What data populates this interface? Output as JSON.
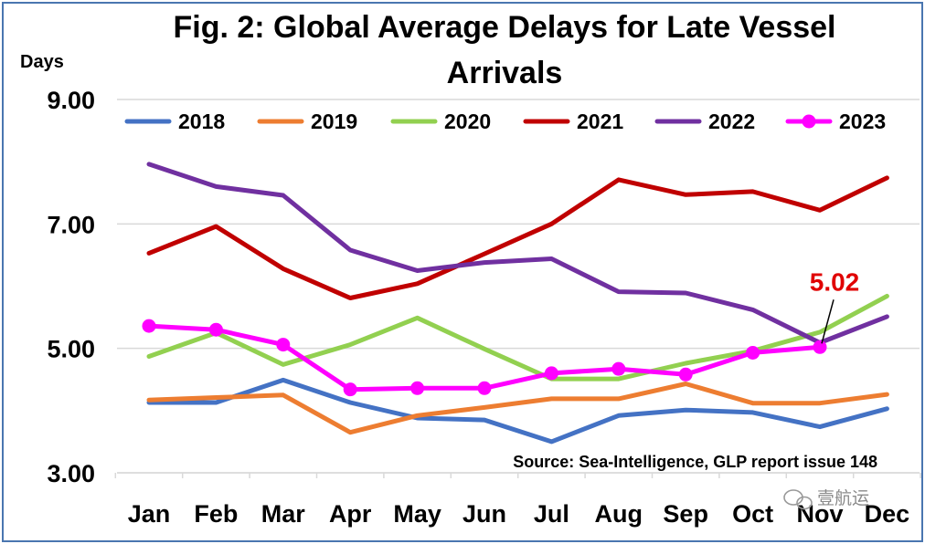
{
  "chart_data": {
    "type": "line",
    "title": "Fig. 2: Global Average Delays for Late Vessel Arrivals",
    "title_lines": [
      "Fig. 2: Global Average Delays for Late Vessel",
      "Arrivals"
    ],
    "ylabel": "Days",
    "xlabel": "",
    "ylim": [
      3.0,
      9.0
    ],
    "yticks": [
      "3.00",
      "5.00",
      "7.00",
      "9.00"
    ],
    "grid": "horizontal",
    "legend_position": "top",
    "categories": [
      "Jan",
      "Feb",
      "Mar",
      "Apr",
      "May",
      "Jun",
      "Jul",
      "Aug",
      "Sep",
      "Oct",
      "Nov",
      "Dec"
    ],
    "series": [
      {
        "name": "2018",
        "color": "#4472c4",
        "markers": false,
        "values": [
          4.13,
          4.13,
          4.49,
          4.13,
          3.88,
          3.85,
          3.5,
          3.92,
          4.01,
          3.97,
          3.74,
          4.03
        ]
      },
      {
        "name": "2019",
        "color": "#ed7d31",
        "markers": false,
        "values": [
          4.17,
          4.21,
          4.25,
          3.65,
          3.92,
          4.05,
          4.19,
          4.19,
          4.43,
          4.12,
          4.12,
          4.26
        ]
      },
      {
        "name": "2020",
        "color": "#92d050",
        "markers": false,
        "values": [
          4.87,
          5.25,
          4.74,
          5.06,
          5.49,
          4.99,
          4.51,
          4.51,
          4.76,
          4.96,
          5.26,
          5.84
        ]
      },
      {
        "name": "2021",
        "color": "#c00000",
        "markers": false,
        "values": [
          6.53,
          6.96,
          6.28,
          5.81,
          6.04,
          6.52,
          7.0,
          7.71,
          7.47,
          7.52,
          7.22,
          7.74
        ]
      },
      {
        "name": "2022",
        "color": "#7030a0",
        "markers": false,
        "values": [
          7.96,
          7.6,
          7.46,
          6.58,
          6.25,
          6.38,
          6.44,
          5.91,
          5.89,
          5.62,
          5.09,
          5.51
        ]
      },
      {
        "name": "2023",
        "color": "#ff00ff",
        "markers": true,
        "values": [
          5.36,
          5.3,
          5.06,
          4.34,
          4.36,
          4.36,
          4.6,
          4.67,
          4.58,
          4.93,
          5.02,
          null
        ]
      }
    ],
    "annotations": [
      {
        "text": "5.02",
        "series": "2023",
        "category": "Nov",
        "color": "#e00000"
      }
    ],
    "source": "Source: Sea-Intelligence, GLP report issue 148"
  },
  "watermark": "壹航运"
}
